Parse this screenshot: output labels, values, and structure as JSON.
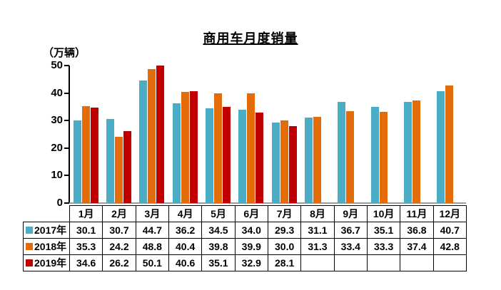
{
  "title": "商用车月度销量",
  "y_axis_unit": "（万辆）",
  "chart_data": {
    "type": "bar",
    "title": "商用车月度销量",
    "ylabel": "（万辆）",
    "xlabel": "",
    "categories": [
      "1月",
      "2月",
      "3月",
      "4月",
      "5月",
      "6月",
      "7月",
      "8月",
      "9月",
      "10月",
      "11月",
      "12月"
    ],
    "series": [
      {
        "name": "2017年",
        "color": "#4BACC6",
        "values": [
          30.1,
          30.7,
          44.7,
          36.2,
          34.5,
          34.0,
          29.3,
          31.1,
          36.7,
          35.1,
          36.8,
          40.7
        ]
      },
      {
        "name": "2018年",
        "color": "#E36C09",
        "values": [
          35.3,
          24.2,
          48.8,
          40.4,
          39.8,
          39.9,
          30.0,
          31.3,
          33.4,
          33.3,
          37.4,
          42.8
        ]
      },
      {
        "name": "2019年",
        "color": "#C00000",
        "values": [
          34.6,
          26.2,
          50.1,
          40.6,
          35.1,
          32.9,
          28.1,
          null,
          null,
          null,
          null,
          null
        ]
      }
    ],
    "ylim": [
      0,
      50
    ],
    "yticks": [
      0,
      10,
      20,
      30,
      40,
      50
    ],
    "grid": false,
    "legend_position": "table-left",
    "axis_color": "#000000",
    "baseline_color": "#9d9d9d"
  }
}
